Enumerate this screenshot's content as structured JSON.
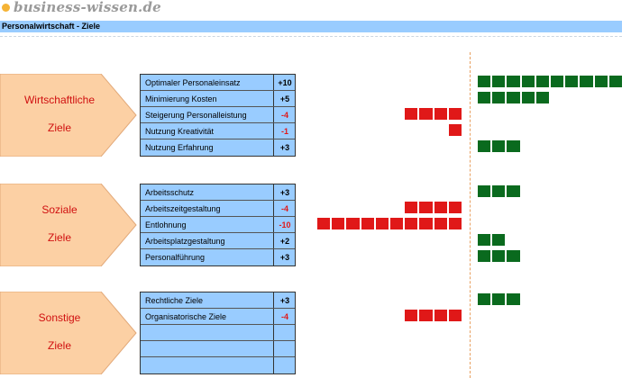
{
  "header": {
    "logo_text": "business-wissen.de",
    "title": "Personalwirtschaft - Ziele"
  },
  "colors": {
    "positive": "#0a6a1e",
    "negative": "#e01818",
    "arrow": "#fcd0a4",
    "table": "#99ccff"
  },
  "groups": [
    {
      "label_line1": "Wirtschaftliche",
      "label_line2": "Ziele",
      "items": [
        {
          "label": "Optimaler Personaleinsatz",
          "value_text": "+10"
        },
        {
          "label": "Minimierung Kosten",
          "value_text": "+5"
        },
        {
          "label": "Steigerung Personalleistung",
          "value_text": "-4"
        },
        {
          "label": "Nutzung Kreativität",
          "value_text": "-1"
        },
        {
          "label": "Nutzung Erfahrung",
          "value_text": "+3"
        }
      ]
    },
    {
      "label_line1": "Soziale",
      "label_line2": "Ziele",
      "items": [
        {
          "label": "Arbeitsschutz",
          "value_text": "+3"
        },
        {
          "label": "Arbeitszeitgestaltung",
          "value_text": "-4"
        },
        {
          "label": "Entlohnung",
          "value_text": "-10"
        },
        {
          "label": "Arbeitsplatzgestaltung",
          "value_text": "+2"
        },
        {
          "label": "Personalführung",
          "value_text": "+3"
        }
      ]
    },
    {
      "label_line1": "Sonstige",
      "label_line2": "Ziele",
      "items": [
        {
          "label": "Rechtliche Ziele",
          "value_text": "+3"
        },
        {
          "label": "Organisatorische Ziele",
          "value_text": "-4"
        },
        {
          "label": "",
          "value_text": ""
        },
        {
          "label": "",
          "value_text": ""
        },
        {
          "label": "",
          "value_text": ""
        }
      ]
    }
  ],
  "chart_data": {
    "type": "bar",
    "orientation": "horizontal",
    "title": "Personalwirtschaft - Ziele",
    "categories": [
      "Optimaler Personaleinsatz",
      "Minimierung Kosten",
      "Steigerung Personalleistung",
      "Nutzung Kreativität",
      "Nutzung Erfahrung",
      "Arbeitsschutz",
      "Arbeitszeitgestaltung",
      "Entlohnung",
      "Arbeitsplatzgestaltung",
      "Personalführung",
      "Rechtliche Ziele",
      "Organisatorische Ziele"
    ],
    "values": [
      10,
      5,
      -4,
      -1,
      3,
      3,
      -4,
      -10,
      2,
      3,
      3,
      -4
    ],
    "xlim": [
      -10,
      10
    ],
    "grid": false
  }
}
